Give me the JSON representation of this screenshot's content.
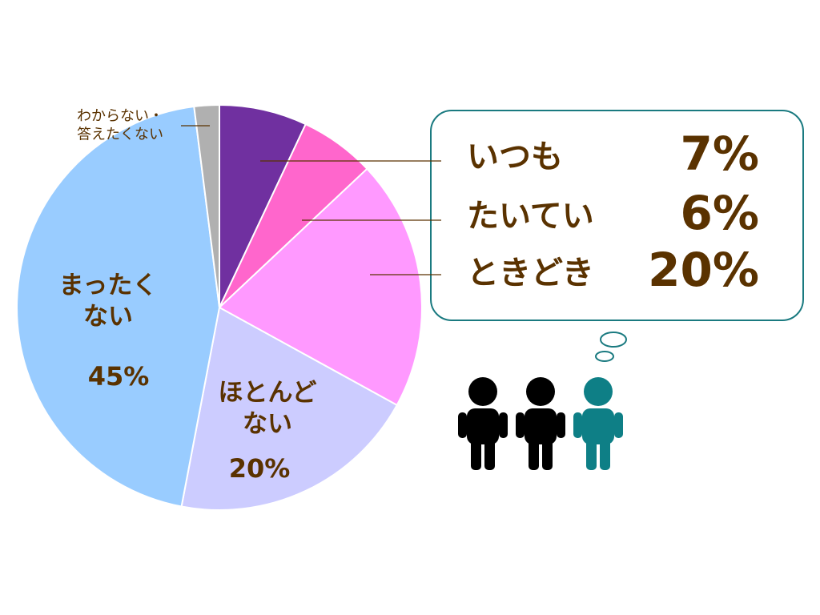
{
  "chart_data": {
    "type": "pie",
    "categories": [
      "いつも",
      "たいてい",
      "ときどき",
      "ほとんど\nない",
      "まったく\nない",
      "わからない・\n答えたくない"
    ],
    "values": [
      7,
      6,
      20,
      20,
      45,
      2
    ],
    "value_labels": [
      "7%",
      "6%",
      "20%",
      "20%",
      "45%",
      null
    ],
    "colors": [
      "#7030a0",
      "#ff66cc",
      "#ff99ff",
      "#ccccff",
      "#99ccff",
      "#b0b0b0"
    ]
  }
}
